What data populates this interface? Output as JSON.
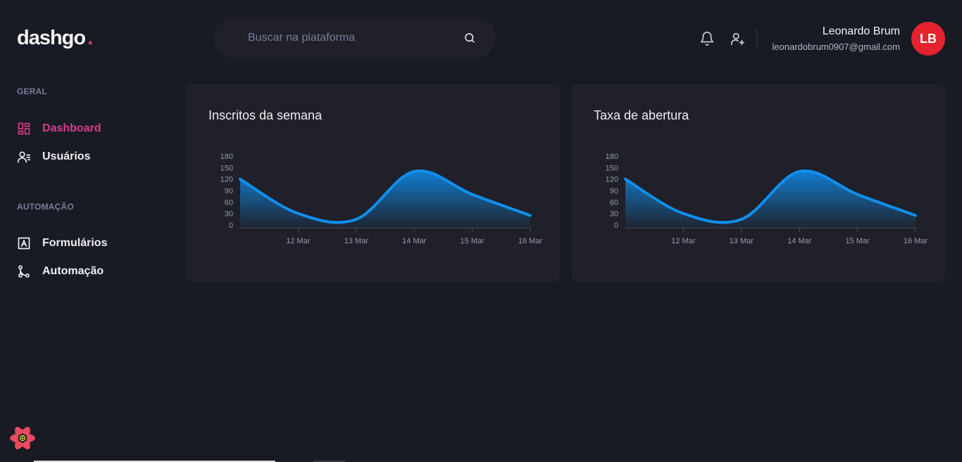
{
  "logo": {
    "text": "dashgo",
    "dot": "."
  },
  "search": {
    "placeholder": "Buscar na plataforma",
    "icon": "search-icon"
  },
  "header": {
    "icons": [
      "bell-icon",
      "user-plus-icon"
    ]
  },
  "profile": {
    "name": "Leonardo Brum",
    "email": "leonardobrum0907@gmail.com",
    "initials": "LB"
  },
  "sidebar": {
    "sections": [
      {
        "title": "GERAL",
        "items": [
          {
            "label": "Dashboard",
            "icon": "dashboard-icon",
            "active": true
          },
          {
            "label": "Usuários",
            "icon": "users-icon",
            "active": false
          }
        ]
      },
      {
        "title": "AUTOMAÇÃO",
        "items": [
          {
            "label": "Formulários",
            "icon": "form-icon",
            "active": false
          },
          {
            "label": "Automação",
            "icon": "git-merge-icon",
            "active": false
          }
        ]
      }
    ]
  },
  "colors": {
    "accent": "#d53f8c",
    "series": "#0f8fee",
    "avatar": "#e5232e",
    "background": "#181b23",
    "card": "#1f2029"
  },
  "chart_data": [
    {
      "type": "area",
      "title": "Inscritos da semana",
      "xlabel": "",
      "ylabel": "",
      "ylim": [
        0,
        180
      ],
      "yticks": [
        0,
        30,
        60,
        90,
        120,
        150,
        180
      ],
      "x_ticks": [
        "12 Mar",
        "13 Mar",
        "14 Mar",
        "15 Mar",
        "16 Mar"
      ],
      "series": [
        {
          "x": [
            "11 Mar",
            "12 Mar",
            "13 Mar",
            "14 Mar",
            "15 Mar",
            "16 Mar"
          ],
          "values": [
            120,
            30,
            15,
            140,
            80,
            25
          ]
        }
      ],
      "grid": false
    },
    {
      "type": "area",
      "title": "Taxa de abertura",
      "xlabel": "",
      "ylabel": "",
      "ylim": [
        0,
        180
      ],
      "yticks": [
        0,
        30,
        60,
        90,
        120,
        150,
        180
      ],
      "x_ticks": [
        "12 Mar",
        "13 Mar",
        "14 Mar",
        "15 Mar",
        "16 Mar"
      ],
      "series": [
        {
          "x": [
            "11 Mar",
            "12 Mar",
            "13 Mar",
            "14 Mar",
            "15 Mar",
            "16 Mar"
          ],
          "values": [
            120,
            30,
            15,
            140,
            80,
            25
          ]
        }
      ],
      "grid": false
    }
  ]
}
